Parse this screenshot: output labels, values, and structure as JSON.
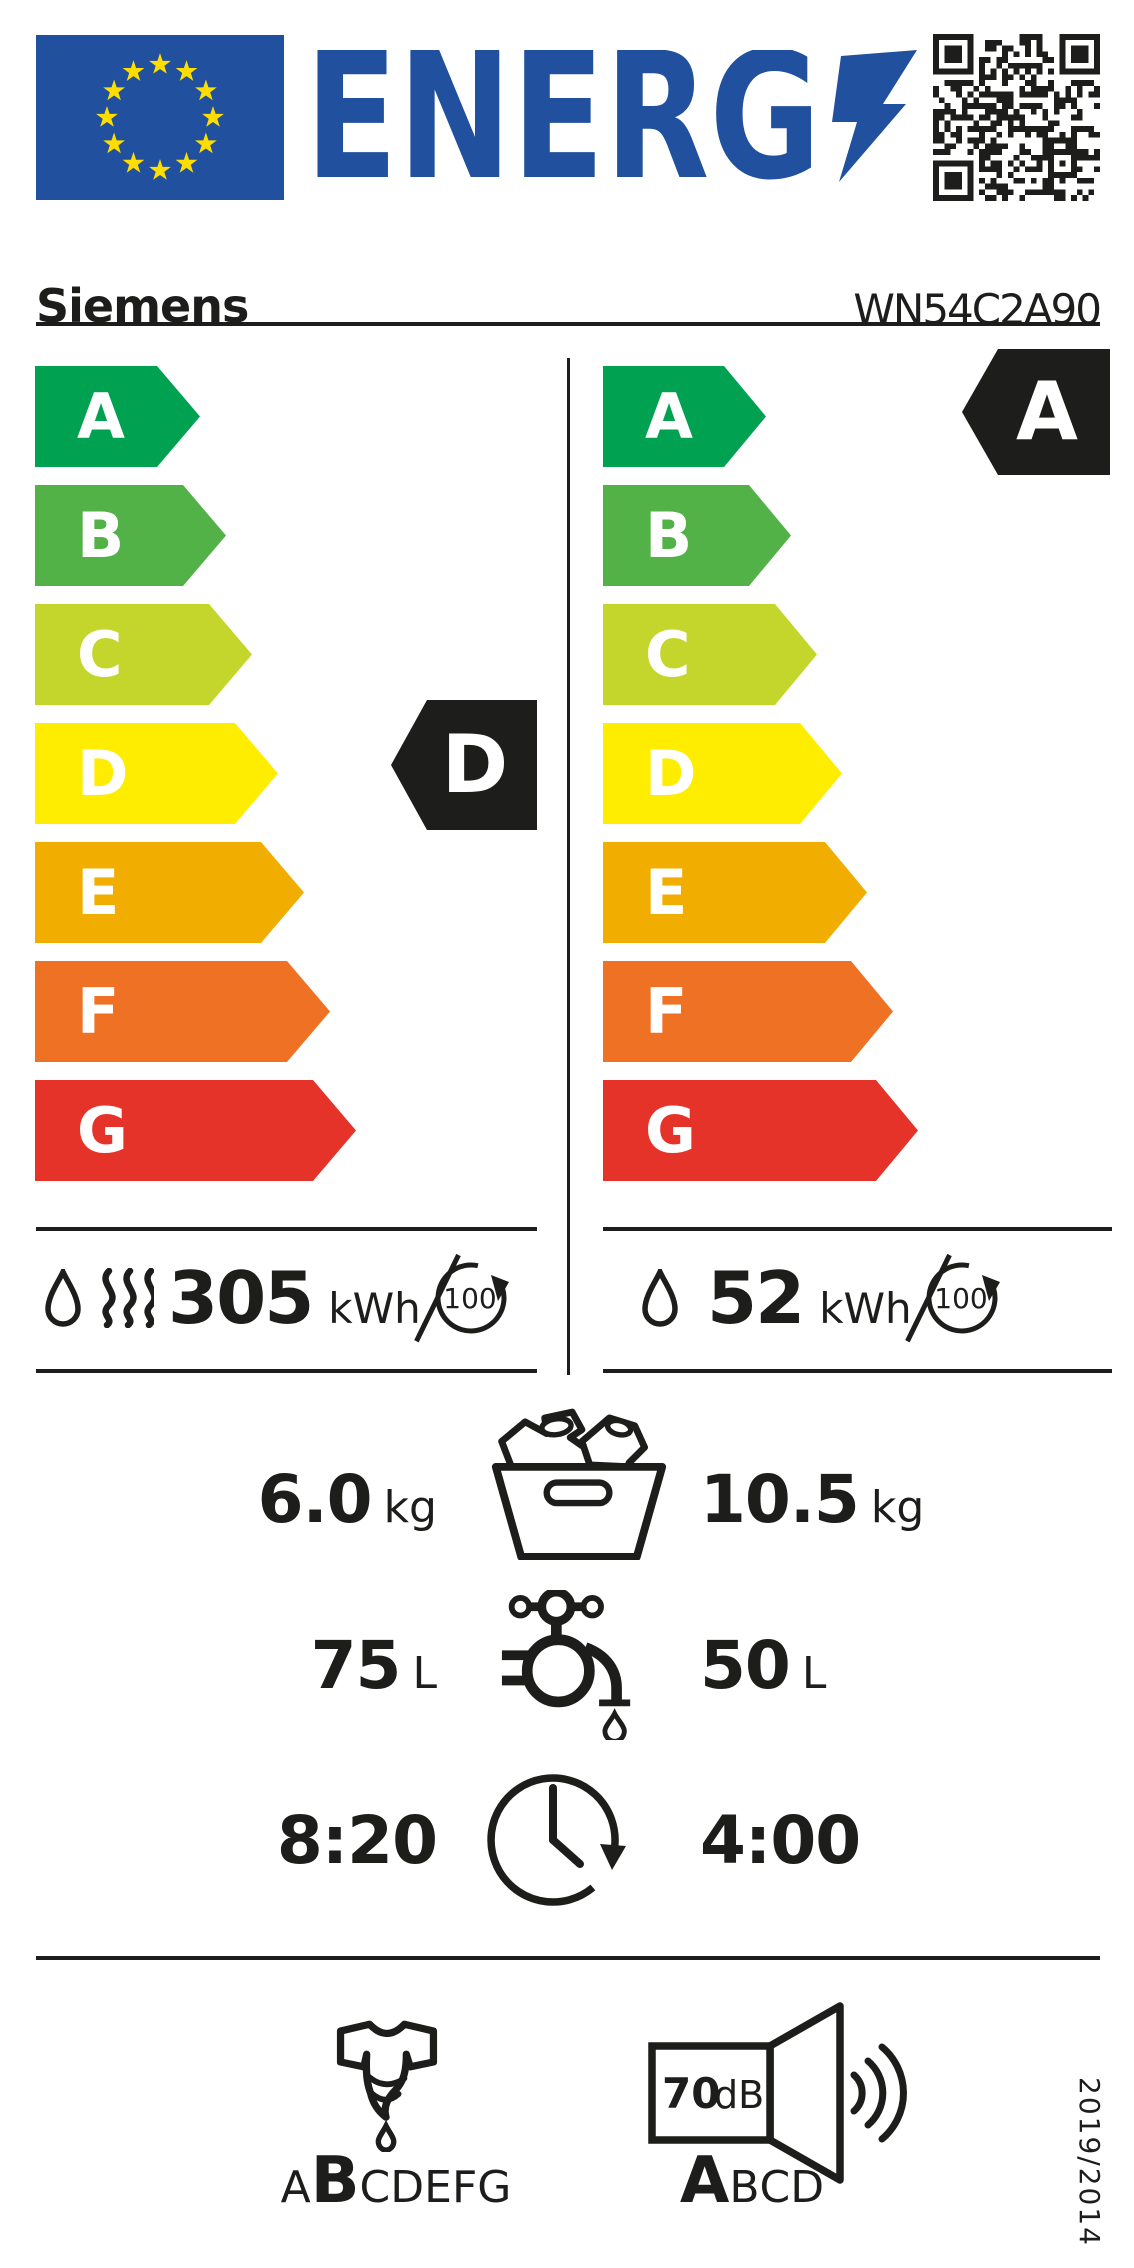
{
  "header": {
    "eu_flag": {
      "stars": 12,
      "flag_blue": "#20509e",
      "star_yellow": "#ffdd00"
    },
    "logo_text": "ENERG",
    "brand": "Siemens",
    "model": "WN54C2A90"
  },
  "scale": {
    "grades": [
      {
        "letter": "A",
        "color": "#00a151"
      },
      {
        "letter": "B",
        "color": "#52b147"
      },
      {
        "letter": "C",
        "color": "#c4d62b"
      },
      {
        "letter": "D",
        "color": "#ffed00"
      },
      {
        "letter": "E",
        "color": "#f1ad00"
      },
      {
        "letter": "F",
        "color": "#ee7124"
      },
      {
        "letter": "G",
        "color": "#e6332a"
      }
    ]
  },
  "complete_cycle": {
    "rating": "D",
    "energy_value": "305",
    "energy_unit": "kWh",
    "cycles_label": "100"
  },
  "wash_cycle": {
    "rating": "A",
    "energy_value": "52",
    "energy_unit": "kWh",
    "cycles_label": "100"
  },
  "details": {
    "capacity": {
      "complete_value": "6.0",
      "complete_unit": "kg",
      "wash_value": "10.5",
      "wash_unit": "kg"
    },
    "water": {
      "complete_value": "75",
      "complete_unit": "L",
      "wash_value": "50",
      "wash_unit": "L"
    },
    "duration": {
      "complete_value": "8:20",
      "wash_value": "4:00"
    }
  },
  "footer": {
    "spin": {
      "classes": [
        "A",
        "B",
        "C",
        "D",
        "E",
        "F",
        "G"
      ],
      "rating": "B"
    },
    "noise": {
      "value": "70",
      "unit": "dB",
      "classes": [
        "A",
        "B",
        "C",
        "D"
      ],
      "rating": "A"
    },
    "regulation": "2019/2014"
  },
  "icons": [
    "eu-flag",
    "lightning-bolt-icon",
    "qr-code",
    "water-drop-icon",
    "heat-waves-icon",
    "cycles-100-icon",
    "laundry-basket-icon",
    "water-tap-icon",
    "clock-icon",
    "spin-dry-icon",
    "noise-speaker-icon"
  ],
  "colors": {
    "ink": "#1d1d1b",
    "accent_blue": "#20509e",
    "star_yellow": "#ffdd00"
  }
}
